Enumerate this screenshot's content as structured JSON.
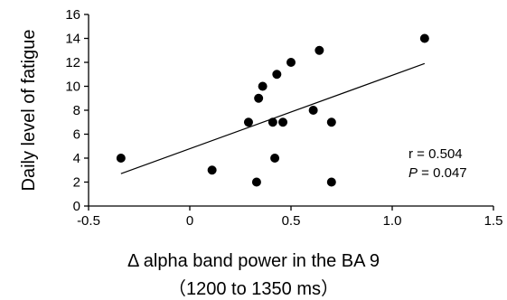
{
  "chart_data": {
    "type": "scatter",
    "xlabel": "Δ alpha band power in the BA 9",
    "xlabel_sub": "（1200 to 1350 ms）",
    "ylabel": "Daily level of fatigue",
    "xlim": [
      -0.5,
      1.5
    ],
    "ylim": [
      0,
      16
    ],
    "xticks": [
      "-0.5",
      "0",
      "0.5",
      "1.0",
      "1.5"
    ],
    "xtick_values": [
      -0.5,
      0,
      0.5,
      1.0,
      1.5
    ],
    "yticks": [
      "0",
      "2",
      "4",
      "6",
      "8",
      "10",
      "12",
      "14",
      "16"
    ],
    "ytick_values": [
      0,
      2,
      4,
      6,
      8,
      10,
      12,
      14,
      16
    ],
    "grid": false,
    "points": [
      {
        "x": -0.34,
        "y": 4
      },
      {
        "x": 0.11,
        "y": 3
      },
      {
        "x": 0.29,
        "y": 7
      },
      {
        "x": 0.33,
        "y": 2
      },
      {
        "x": 0.34,
        "y": 9
      },
      {
        "x": 0.36,
        "y": 10
      },
      {
        "x": 0.41,
        "y": 7
      },
      {
        "x": 0.42,
        "y": 4
      },
      {
        "x": 0.43,
        "y": 11
      },
      {
        "x": 0.46,
        "y": 7
      },
      {
        "x": 0.5,
        "y": 12
      },
      {
        "x": 0.61,
        "y": 8
      },
      {
        "x": 0.64,
        "y": 13
      },
      {
        "x": 0.7,
        "y": 7
      },
      {
        "x": 0.7,
        "y": 2
      },
      {
        "x": 1.16,
        "y": 14
      }
    ],
    "trendline": {
      "x": [
        -0.34,
        1.16
      ],
      "y": [
        2.7,
        11.9
      ]
    },
    "annotations": {
      "r_text": "r = 0.504",
      "p_label": "P",
      "p_value": " = 0.047"
    }
  }
}
